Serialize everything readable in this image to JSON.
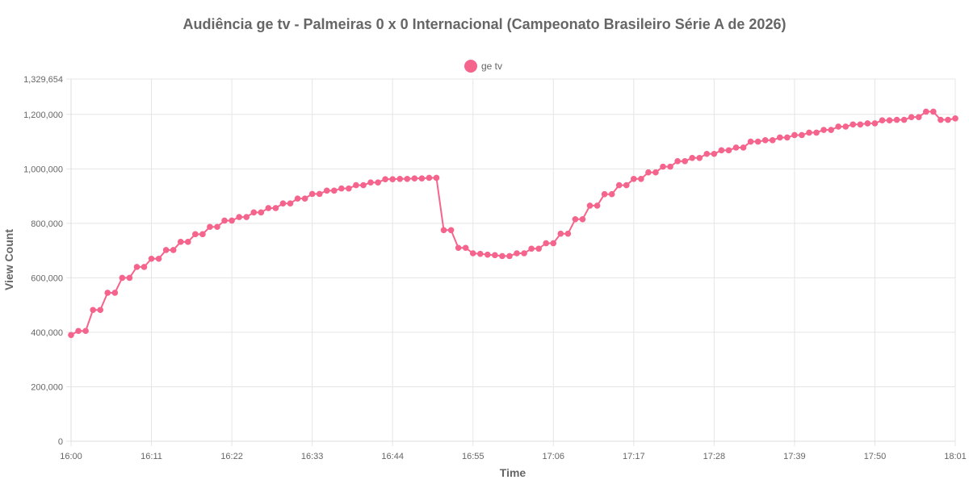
{
  "chart_data": {
    "type": "line",
    "title": "Audiência ge tv - Palmeiras 0 x 0 Internacional (Campeonato Brasileiro Série A de 2026)",
    "xlabel": "Time",
    "ylabel": "View Count",
    "ylim": [
      0,
      1329654
    ],
    "y_ticks": [
      "0",
      "200,000",
      "400,000",
      "600,000",
      "800,000",
      "1,000,000",
      "1,200,000",
      "1,329,654"
    ],
    "y_tick_values": [
      0,
      200000,
      400000,
      600000,
      800000,
      1000000,
      1200000,
      1329654
    ],
    "x_ticks": [
      "16:00",
      "16:11",
      "16:22",
      "16:33",
      "16:44",
      "16:55",
      "17:06",
      "17:17",
      "17:28",
      "17:39",
      "17:50",
      "18:01"
    ],
    "grid": true,
    "legend_position": "top",
    "series": [
      {
        "name": "ge tv",
        "color": "#f5648c",
        "x": [
          "16:00",
          "16:01",
          "16:02",
          "16:03",
          "16:04",
          "16:05",
          "16:06",
          "16:07",
          "16:08",
          "16:09",
          "16:10",
          "16:11",
          "16:12",
          "16:13",
          "16:14",
          "16:15",
          "16:16",
          "16:17",
          "16:18",
          "16:19",
          "16:20",
          "16:21",
          "16:22",
          "16:23",
          "16:24",
          "16:25",
          "16:26",
          "16:27",
          "16:28",
          "16:29",
          "16:30",
          "16:31",
          "16:32",
          "16:33",
          "16:34",
          "16:35",
          "16:36",
          "16:37",
          "16:38",
          "16:39",
          "16:40",
          "16:41",
          "16:42",
          "16:43",
          "16:44",
          "16:45",
          "16:46",
          "16:47",
          "16:48",
          "16:49",
          "16:50",
          "16:51",
          "16:52",
          "16:53",
          "16:54",
          "16:55",
          "16:56",
          "16:57",
          "16:58",
          "16:59",
          "17:00",
          "17:01",
          "17:02",
          "17:03",
          "17:04",
          "17:05",
          "17:06",
          "17:07",
          "17:08",
          "17:09",
          "17:10",
          "17:11",
          "17:12",
          "17:13",
          "17:14",
          "17:15",
          "17:16",
          "17:17",
          "17:18",
          "17:19",
          "17:20",
          "17:21",
          "17:22",
          "17:23",
          "17:24",
          "17:25",
          "17:26",
          "17:27",
          "17:28",
          "17:29",
          "17:30",
          "17:31",
          "17:32",
          "17:33",
          "17:34",
          "17:35",
          "17:36",
          "17:37",
          "17:38",
          "17:39",
          "17:40",
          "17:41",
          "17:42",
          "17:43",
          "17:44",
          "17:45",
          "17:46",
          "17:47",
          "17:48",
          "17:49",
          "17:50",
          "17:51",
          "17:52",
          "17:53",
          "17:54",
          "17:55",
          "17:56",
          "17:57",
          "17:58",
          "17:59",
          "18:00",
          "18:01"
        ],
        "values": [
          390000,
          405000,
          405000,
          482000,
          482000,
          545000,
          545000,
          600000,
          600000,
          640000,
          640000,
          670000,
          670000,
          702000,
          702000,
          732000,
          732000,
          760000,
          760000,
          787000,
          787000,
          810000,
          810000,
          823000,
          823000,
          840000,
          840000,
          856000,
          856000,
          873000,
          873000,
          891000,
          891000,
          908000,
          908000,
          920000,
          920000,
          928000,
          928000,
          940000,
          940000,
          950000,
          950000,
          962000,
          962000,
          963000,
          963000,
          965000,
          965000,
          967000,
          967000,
          775000,
          775000,
          710000,
          710000,
          690000,
          688000,
          685000,
          683000,
          680000,
          680000,
          690000,
          690000,
          707000,
          707000,
          727000,
          727000,
          762000,
          762000,
          815000,
          815000,
          865000,
          865000,
          907000,
          907000,
          940000,
          940000,
          963000,
          963000,
          987000,
          987000,
          1008000,
          1008000,
          1028000,
          1028000,
          1040000,
          1040000,
          1055000,
          1055000,
          1068000,
          1068000,
          1078000,
          1078000,
          1100000,
          1100000,
          1105000,
          1105000,
          1115000,
          1115000,
          1124000,
          1124000,
          1133000,
          1133000,
          1143000,
          1143000,
          1155000,
          1155000,
          1163000,
          1163000,
          1167000,
          1167000,
          1178000,
          1178000,
          1180000,
          1180000,
          1190000,
          1190000,
          1210000,
          1210000,
          1180000,
          1180000,
          1185000
        ]
      }
    ]
  }
}
